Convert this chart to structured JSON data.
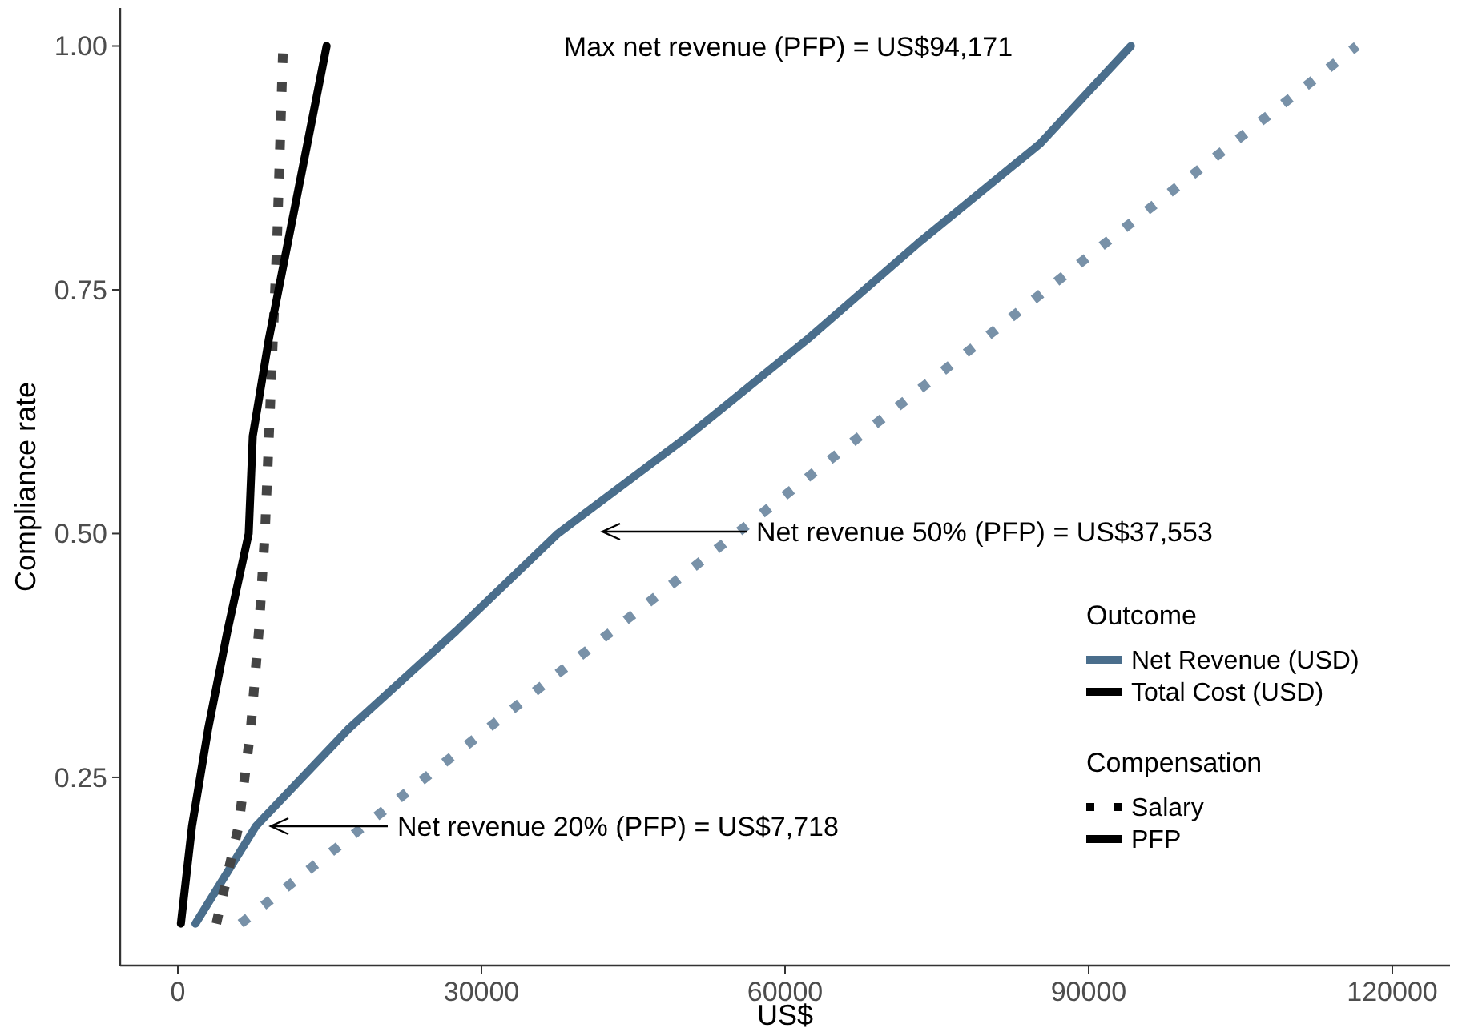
{
  "chart_data": {
    "type": "line",
    "xlabel": "US$",
    "ylabel": "Compliance rate",
    "legend_title": "Outcome",
    "legend": "right",
    "grid": false,
    "xlim": [
      -5700,
      125700
    ],
    "xticks": [
      0,
      30000,
      60000,
      90000,
      120000
    ],
    "ylim": [
      0.057,
      1.039
    ],
    "yticks": [
      {
        "value": 0.25,
        "label": "0.25"
      },
      {
        "value": 0.5,
        "label": "0.50"
      },
      {
        "value": 0.75,
        "label": "0.75"
      },
      {
        "value": 1,
        "label": "1.00"
      }
    ],
    "series": [
      {
        "color": "#7891a8",
        "line_style": "dotted",
        "x": [
          6200,
          18400,
          30600,
          42900,
          55200,
          67400,
          79700,
          91900,
          104200,
          116500
        ],
        "values": [
          0.1,
          0.2,
          0.3,
          0.4,
          0.5,
          0.6,
          0.7,
          0.8,
          0.9,
          1.0
        ]
      },
      {
        "name": "Net Revenue (USD)",
        "color": "#4a6e8c",
        "line_style": "solid",
        "x": [
          1740,
          7718,
          16900,
          27500,
          37553,
          50400,
          62300,
          73400,
          85200,
          94171
        ],
        "values": [
          0.1,
          0.2,
          0.3,
          0.4,
          0.5,
          0.6,
          0.7,
          0.8,
          0.9,
          1.0
        ]
      },
      {
        "color": "#444444",
        "line_style": "dotted",
        "x": [
          3800,
          6000,
          7200,
          8000,
          8600,
          9000,
          9400,
          9800,
          10100,
          10400
        ],
        "values": [
          0.1,
          0.2,
          0.3,
          0.4,
          0.5,
          0.6,
          0.7,
          0.8,
          0.9,
          1.0
        ]
      },
      {
        "name": "Total Cost (USD)",
        "color": "#000000",
        "line_style": "solid",
        "x": [
          300,
          1400,
          3000,
          4900,
          7000,
          7400,
          9000,
          10900,
          12800,
          14700
        ],
        "values": [
          0.1,
          0.2,
          0.3,
          0.4,
          0.5,
          0.6,
          0.7,
          0.8,
          0.9,
          1.0
        ]
      }
    ],
    "annotations": [
      "Max net revenue (PFP) = US$94,171",
      "Net revenue 50% (PFP) = US$37,553",
      "Net revenue 20% (PFP) = US$7,718",
      "Compensation",
      "Salary",
      "PFP"
    ]
  }
}
